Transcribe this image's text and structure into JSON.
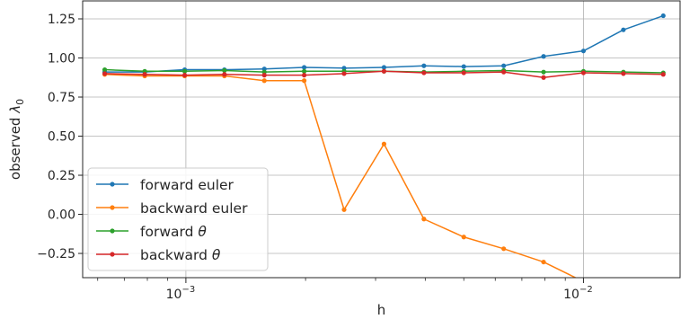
{
  "chart_data": {
    "type": "line",
    "xscale": "log",
    "xlim": [
      0.00055,
      0.0175
    ],
    "ylim": [
      -0.405,
      1.365
    ],
    "grid": true,
    "legend_position": "lower-left",
    "xlabel": "h",
    "ylabel": {
      "prefix": "observed ",
      "symbol": "λ",
      "subscript": "0"
    },
    "x_ticks": [
      {
        "value": 0.001,
        "base": "10",
        "exp": "−3"
      },
      {
        "value": 0.01,
        "base": "10",
        "exp": "−2"
      }
    ],
    "y_ticks": [
      {
        "value": -0.25,
        "label": "−0.25"
      },
      {
        "value": 0.0,
        "label": "0.00"
      },
      {
        "value": 0.25,
        "label": "0.25"
      },
      {
        "value": 0.5,
        "label": "0.50"
      },
      {
        "value": 0.75,
        "label": "0.75"
      },
      {
        "value": 1.0,
        "label": "1.00"
      },
      {
        "value": 1.25,
        "label": "1.25"
      }
    ],
    "x": [
      0.000625,
      0.000788,
      0.000993,
      0.00125,
      0.001575,
      0.001984,
      0.0025,
      0.00315,
      0.003969,
      0.005,
      0.0063,
      0.007937,
      0.01,
      0.0126,
      0.015874
    ],
    "series": [
      {
        "name": "forward euler",
        "math": "",
        "color": "#1f77b4",
        "values": [
          0.91,
          0.91,
          0.925,
          0.925,
          0.93,
          0.94,
          0.935,
          0.94,
          0.95,
          0.945,
          0.95,
          1.01,
          1.045,
          1.18,
          1.27
        ]
      },
      {
        "name": "backward euler",
        "math": "",
        "color": "#ff7f0e",
        "values": [
          0.895,
          0.885,
          0.885,
          0.885,
          0.855,
          0.855,
          0.03,
          0.45,
          -0.03,
          -0.145,
          -0.22,
          -0.305,
          -0.43,
          null,
          null
        ]
      },
      {
        "name": "forward ",
        "math": "θ",
        "color": "#2ca02c",
        "values": [
          0.925,
          0.915,
          0.915,
          0.92,
          0.91,
          0.915,
          0.915,
          0.915,
          0.91,
          0.915,
          0.92,
          0.91,
          0.915,
          0.91,
          0.905
        ]
      },
      {
        "name": "backward ",
        "math": "θ",
        "color": "#d62728",
        "values": [
          0.9,
          0.895,
          0.89,
          0.895,
          0.89,
          0.89,
          0.9,
          0.915,
          0.905,
          0.905,
          0.91,
          0.875,
          0.905,
          0.9,
          0.895
        ]
      }
    ]
  }
}
